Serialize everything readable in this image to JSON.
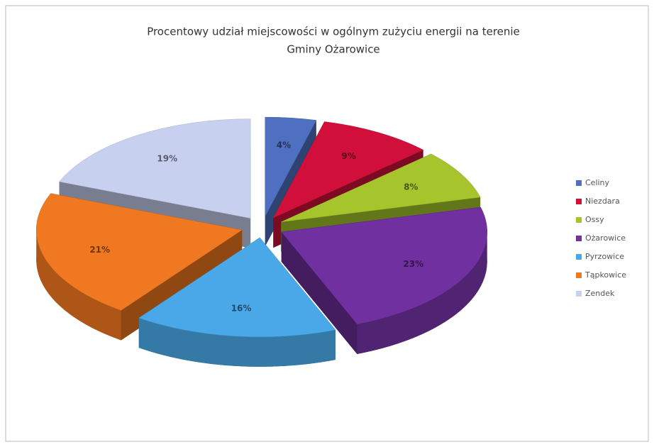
{
  "chart_data": {
    "type": "pie",
    "title": [
      "Procentowy udział miejscowości w ogólnym zużyciu energii na terenie",
      "Gminy Ożarowice"
    ],
    "categories": [
      "Celiny",
      "Niezdara",
      "Ossy",
      "Ożarowice",
      "Pyrzowice",
      "Tąpkowice",
      "Zendek"
    ],
    "values": [
      4,
      9,
      8,
      23,
      16,
      21,
      19
    ],
    "value_labels": [
      "4%",
      "9%",
      "8%",
      "23%",
      "16%",
      "21%",
      "19%"
    ],
    "colors": [
      "#4f6fc0",
      "#d0103a",
      "#a6c42c",
      "#7030a0",
      "#4aa8e8",
      "#f07820",
      "#c8d0f0"
    ],
    "legend": "right"
  }
}
